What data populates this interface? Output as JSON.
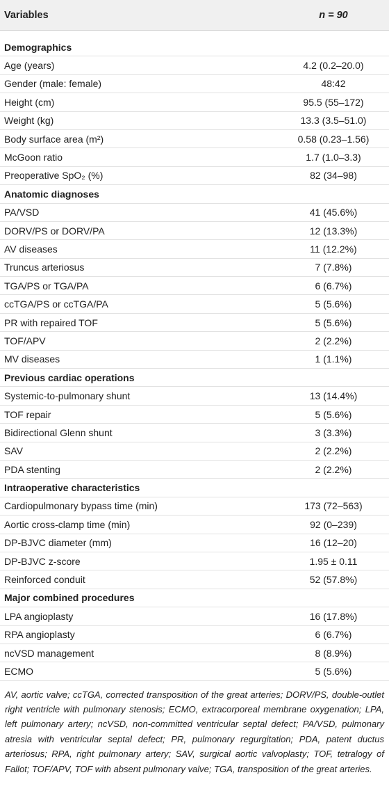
{
  "table": {
    "header": [
      "Variables",
      "n = 90"
    ],
    "sections": [
      {
        "title": "Demographics",
        "rows": [
          [
            "Age (years)",
            "4.2 (0.2–20.0)"
          ],
          [
            "Gender (male: female)",
            "48:42"
          ],
          [
            "Height (cm)",
            "95.5 (55–172)"
          ],
          [
            "Weight (kg)",
            "13.3 (3.5–51.0)"
          ],
          [
            "Body surface area (m²)",
            "0.58 (0.23–1.56)"
          ],
          [
            "McGoon ratio",
            "1.7 (1.0–3.3)"
          ],
          [
            "Preoperative SpO₂ (%)",
            "82 (34–98)"
          ]
        ]
      },
      {
        "title": "Anatomic diagnoses",
        "rows": [
          [
            "PA/VSD",
            "41 (45.6%)"
          ],
          [
            "DORV/PS or DORV/PA",
            "12 (13.3%)"
          ],
          [
            "AV diseases",
            "11 (12.2%)"
          ],
          [
            "Truncus arteriosus",
            "7 (7.8%)"
          ],
          [
            "TGA/PS or TGA/PA",
            "6 (6.7%)"
          ],
          [
            "ccTGA/PS or ccTGA/PA",
            "5 (5.6%)"
          ],
          [
            "PR with repaired TOF",
            "5 (5.6%)"
          ],
          [
            "TOF/APV",
            "2 (2.2%)"
          ],
          [
            "MV diseases",
            "1 (1.1%)"
          ]
        ]
      },
      {
        "title": "Previous cardiac operations",
        "rows": [
          [
            "Systemic-to-pulmonary shunt",
            "13 (14.4%)"
          ],
          [
            "TOF repair",
            "5 (5.6%)"
          ],
          [
            "Bidirectional Glenn shunt",
            "3 (3.3%)"
          ],
          [
            "SAV",
            "2 (2.2%)"
          ],
          [
            "PDA stenting",
            "2 (2.2%)"
          ]
        ]
      },
      {
        "title": "Intraoperative characteristics",
        "rows": [
          [
            "Cardiopulmonary bypass time (min)",
            "173 (72–563)"
          ],
          [
            "Aortic cross-clamp time (min)",
            "92 (0–239)"
          ],
          [
            "DP-BJVC diameter (mm)",
            "16 (12–20)"
          ],
          [
            "DP-BJVC z-score",
            "1.95 ± 0.11"
          ],
          [
            "Reinforced conduit",
            "52 (57.8%)"
          ]
        ]
      },
      {
        "title": "Major combined procedures",
        "rows": [
          [
            "LPA angioplasty",
            "16 (17.8%)"
          ],
          [
            "RPA angioplasty",
            "6 (6.7%)"
          ],
          [
            "ncVSD management",
            "8 (8.9%)"
          ],
          [
            "ECMO",
            "5 (5.6%)"
          ]
        ]
      }
    ],
    "footnote": "AV, aortic valve; ccTGA, corrected transposition of the great arteries; DORV/PS, double-outlet right ventricle with pulmonary stenosis; ECMO, extracorporeal membrane oxygenation; LPA, left pulmonary artery; ncVSD, non-committed ventricular septal defect; PA/VSD, pulmonary atresia with ventricular septal defect; PR, pulmonary regurgitation; PDA, patent ductus arteriosus; RPA, right pulmonary artery; SAV, surgical aortic valvoplasty; TOF, tetralogy of Fallot; TOF/APV, TOF with absent pulmonary valve; TGA, transposition of the great arteries."
  }
}
